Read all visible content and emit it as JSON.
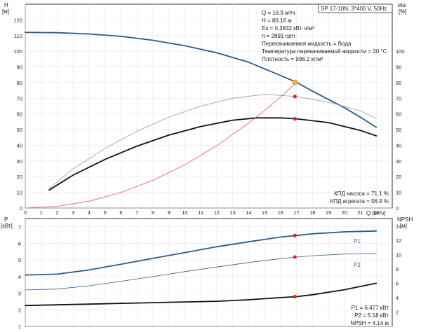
{
  "chart_data": [
    {
      "type": "line",
      "subtitle_box": "SP 17-10N, 3*400 V, 50Hz",
      "left_axis": {
        "label_top": "H",
        "label_unit": "[м]",
        "ylim": [
          0,
          130
        ],
        "ticks": [
          "0",
          "10",
          "20",
          "30",
          "40",
          "50",
          "60",
          "70",
          "80",
          "90",
          "100",
          "110",
          "120"
        ]
      },
      "right_axis": {
        "label_top": "eta",
        "label_unit": "[%]",
        "ylim": [
          0,
          130
        ],
        "ticks": [
          "0",
          "10",
          "20",
          "30",
          "40",
          "50",
          "60",
          "70",
          "80",
          "90",
          "100"
        ]
      },
      "x_axis": {
        "label": "Q [м³/ч]",
        "xlim": [
          0,
          23
        ],
        "ticks": [
          "0",
          "1",
          "2",
          "3",
          "4",
          "5",
          "6",
          "7",
          "8",
          "9",
          "10",
          "11",
          "12",
          "13",
          "14",
          "15",
          "16",
          "17",
          "18",
          "19",
          "20",
          "21",
          "22"
        ]
      },
      "grid": true,
      "info_lines": [
        "Q = 16.9 м³/ч",
        "H = 80.16 м",
        "Es = 0.3832 кВт·ч/м³",
        "n = 2891 rpm",
        "Перекачиваемая жидкость = Вода",
        "Температура перекачиваемой жидкости = 20 °C",
        "Плотность = 998.2 кг/м³"
      ],
      "efficiency_lines": [
        "КПД насоса = 71.1 %",
        "КПД агрегата = 56.9 %"
      ],
      "series": [
        {
          "color": "#2a5a8c",
          "width": 1.8,
          "x": [
            0,
            2,
            4,
            6,
            8,
            10,
            12,
            14,
            16,
            17,
            18,
            20,
            21,
            22
          ],
          "y": [
            112,
            111.8,
            111,
            109.5,
            107,
            103.5,
            99,
            93,
            84.5,
            80.2,
            74.5,
            64,
            58,
            51.5
          ]
        },
        {
          "color": "#999999",
          "width": 0.8,
          "x": [
            1.5,
            3,
            5,
            7,
            9,
            11,
            13,
            15,
            17,
            19,
            21,
            22
          ],
          "y": [
            12.5,
            25,
            38,
            49,
            58,
            65,
            70,
            72.5,
            71.1,
            67.5,
            62,
            57
          ]
        },
        {
          "color": "#111111",
          "width": 1.8,
          "x": [
            1.5,
            3,
            5,
            7,
            9,
            11,
            13,
            14.5,
            16,
            17,
            19,
            21,
            22
          ],
          "y": [
            11.5,
            21,
            31,
            39.5,
            46.5,
            52,
            56,
            57.5,
            57.5,
            56.9,
            54.5,
            49.5,
            46
          ]
        },
        {
          "color": "#ff4d4d",
          "width": 0.8,
          "x": [
            0,
            2,
            4,
            6,
            8,
            10,
            12,
            14,
            15,
            16,
            17
          ],
          "y": [
            0,
            1.1,
            4.4,
            9.9,
            17.7,
            27.6,
            39.8,
            54.2,
            62.2,
            70.8,
            80.2
          ]
        }
      ],
      "operating_points": [
        {
          "x": 16.9,
          "y": 80.16,
          "color": "#f5b82e"
        },
        {
          "x": 16.9,
          "y": 71.1,
          "color": "#e8211e"
        },
        {
          "x": 16.9,
          "y": 56.9,
          "color": "#e8211e"
        }
      ]
    },
    {
      "type": "line",
      "left_axis": {
        "label_top": "P",
        "label_unit": "[кВт]",
        "ylim": [
          1,
          7.5
        ],
        "ticks": [
          "1",
          "2",
          "3",
          "4",
          "5",
          "6",
          "7"
        ]
      },
      "right_axis": {
        "label_top": "NPSH",
        "label_unit": "[м]",
        "ylim": [
          0,
          15
        ],
        "ticks": [
          "2",
          "4",
          "6",
          "8",
          "10",
          "12",
          "14"
        ]
      },
      "xlim": [
        0,
        23
      ],
      "grid": true,
      "info_lines": [
        "P1 = 6.477 кВт",
        "P2 = 5.18 кВт",
        "NPSH = 4.14 м"
      ],
      "series": [
        {
          "name": "P1",
          "color": "#2a5a8c",
          "width": 1.8,
          "x": [
            0,
            2,
            4,
            6,
            8,
            10,
            12,
            14,
            16,
            17,
            18,
            20,
            22
          ],
          "y": [
            4.1,
            4.15,
            4.4,
            4.75,
            5.1,
            5.45,
            5.8,
            6.1,
            6.38,
            6.477,
            6.58,
            6.7,
            6.75
          ]
        },
        {
          "name": "P2",
          "color": "#2a5a8c",
          "width": 0.8,
          "x": [
            0,
            2,
            4,
            6,
            8,
            10,
            12,
            14,
            16,
            17,
            18,
            20,
            22
          ],
          "y": [
            3.2,
            3.25,
            3.45,
            3.72,
            4.0,
            4.3,
            4.58,
            4.85,
            5.08,
            5.18,
            5.26,
            5.36,
            5.4
          ]
        },
        {
          "color": "#111111",
          "width": 1.8,
          "axis": "right",
          "x": [
            0,
            2,
            4,
            6,
            8,
            10,
            12,
            14,
            16,
            17,
            18,
            20,
            22
          ],
          "y": [
            2.9,
            3.0,
            3.1,
            3.2,
            3.3,
            3.4,
            3.5,
            3.7,
            4.0,
            4.14,
            4.4,
            5.1,
            6.0
          ]
        }
      ],
      "operating_points": [
        {
          "x": 16.9,
          "y": 6.477,
          "color": "#e8211e"
        },
        {
          "x": 16.9,
          "y": 5.18,
          "color": "#e8211e"
        },
        {
          "x": 16.9,
          "y": 4.14,
          "color": "#e8211e",
          "axis": "right"
        }
      ]
    }
  ]
}
